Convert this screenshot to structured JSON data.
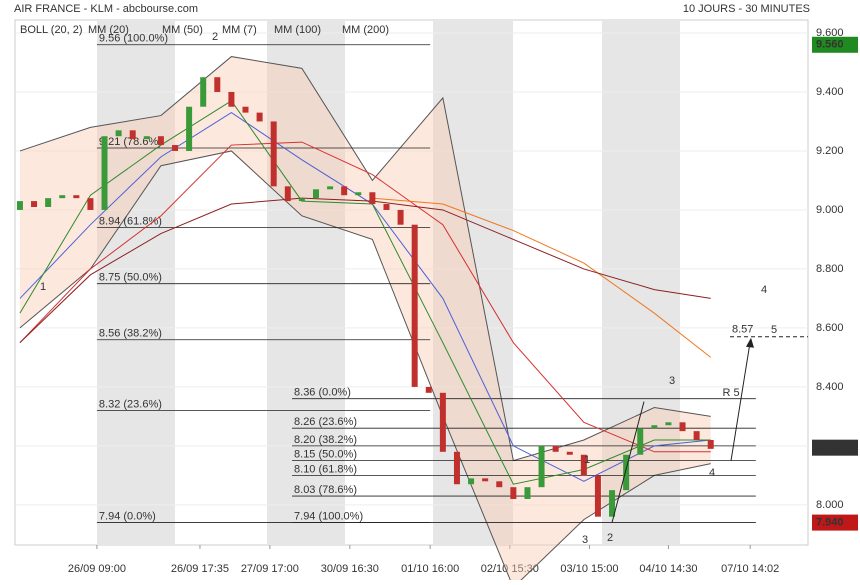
{
  "chart_data": {
    "type": "candlestick",
    "title": "AIR FRANCE - KLM - abcbourse.com",
    "subtitle": "10 JOURS - 30 MINUTES",
    "xlim": [
      -0.35,
      55.9
    ],
    "xticks": [
      {
        "value": 5.46,
        "label": "26/09 09:00"
      },
      {
        "value": 12.77,
        "label": "26/09 17:35"
      },
      {
        "value": 17.73,
        "label": "27/09 17:00"
      },
      {
        "value": 23.4,
        "label": "30/09 16:30"
      },
      {
        "value": 29.1,
        "label": "01/10 16:00"
      },
      {
        "value": 34.75,
        "label": "02/10 15:30"
      },
      {
        "value": 40.4,
        "label": "03/10 15:00"
      },
      {
        "value": 46.0,
        "label": "04/10 14:30"
      },
      {
        "value": 51.8,
        "label": "07/10 14:02"
      }
    ],
    "ylim": [
      7.864,
      9.644
    ],
    "yticks": [
      {
        "value": 9.6,
        "label": "9.600"
      },
      {
        "value": 9.4,
        "label": "9.400"
      },
      {
        "value": 9.2,
        "label": "9.200"
      },
      {
        "value": 9.0,
        "label": "9.000"
      },
      {
        "value": 8.8,
        "label": "8.800"
      },
      {
        "value": 8.6,
        "label": "8.600"
      },
      {
        "value": 8.4,
        "label": "8.400"
      },
      {
        "value": 8.2,
        "label": "8.200"
      },
      {
        "value": 8.0,
        "label": "8.000"
      }
    ],
    "candles": {
      "up_color": "#3a9a3a",
      "down_color": "#c0302c",
      "open": [
        9.0,
        9.03,
        9.01,
        9.04,
        9.05,
        9.04,
        9.0,
        9.25,
        9.27,
        9.24,
        9.25,
        9.22,
        9.2,
        9.35,
        9.45,
        9.4,
        9.35,
        9.33,
        9.3,
        9.08,
        9.03,
        9.04,
        9.07,
        9.08,
        9.05,
        9.06,
        9.02,
        9.0,
        8.95,
        8.4,
        8.38,
        8.18,
        8.07,
        8.09,
        8.08,
        8.06,
        8.02,
        8.06,
        8.2,
        8.18,
        8.17,
        8.1,
        7.96,
        8.05,
        8.17,
        8.26,
        8.27,
        8.28,
        8.25,
        8.22
      ],
      "close": [
        9.03,
        9.01,
        9.04,
        9.05,
        9.04,
        9.0,
        9.25,
        9.27,
        9.24,
        9.25,
        9.22,
        9.2,
        9.35,
        9.45,
        9.4,
        9.35,
        9.33,
        9.3,
        9.08,
        9.03,
        9.04,
        9.07,
        9.08,
        9.05,
        9.06,
        9.02,
        9.0,
        8.95,
        8.4,
        8.38,
        8.18,
        8.07,
        8.09,
        8.08,
        8.06,
        8.02,
        8.06,
        8.2,
        8.18,
        8.17,
        8.1,
        7.96,
        8.05,
        8.17,
        8.26,
        8.27,
        8.28,
        8.25,
        8.22,
        8.19
      ]
    },
    "line_x": [
      0,
      5,
      10,
      15,
      20,
      25,
      30,
      35,
      40,
      45,
      49
    ],
    "series": [
      {
        "name": "BOLL (20, 2)",
        "color": "#555555",
        "upper": [
          9.2,
          9.28,
          9.32,
          9.52,
          9.48,
          9.1,
          9.38,
          8.15,
          8.22,
          8.33,
          8.3
        ],
        "lower": [
          8.6,
          8.8,
          9.15,
          9.2,
          8.98,
          8.9,
          8.3,
          7.72,
          7.95,
          8.1,
          8.14
        ]
      },
      {
        "name": "MM (20)",
        "color": "#4a62d8",
        "values": [
          8.7,
          8.95,
          9.18,
          9.33,
          9.17,
          9.02,
          8.7,
          8.2,
          8.08,
          8.2,
          8.22
        ]
      },
      {
        "name": "MM (50)",
        "color": "#d83030",
        "values": [
          8.55,
          8.8,
          8.98,
          9.22,
          9.23,
          9.12,
          8.95,
          8.55,
          8.28,
          8.18,
          8.18
        ]
      },
      {
        "name": "MM (7)",
        "color": "#2e8b2e",
        "values": [
          8.65,
          9.05,
          9.22,
          9.37,
          9.03,
          9.02,
          8.55,
          8.07,
          8.12,
          8.22,
          8.22
        ]
      },
      {
        "name": "MM (100)",
        "color": "#f07820",
        "values": [
          null,
          null,
          null,
          null,
          null,
          9.04,
          9.02,
          8.93,
          8.82,
          8.65,
          8.5
        ]
      },
      {
        "name": "MM (200)",
        "color": "#8b2020",
        "values": [
          8.55,
          8.78,
          8.92,
          9.02,
          9.04,
          9.03,
          9.0,
          8.9,
          8.8,
          8.73,
          8.7
        ]
      }
    ],
    "fibonacci": [
      {
        "levels": [
          {
            "value": 9.56,
            "label": "9.56  (100.0%)"
          },
          {
            "value": 9.21,
            "label": "9.21  (78.6%)"
          },
          {
            "value": 8.94,
            "label": "8.94  (61.8%)"
          },
          {
            "value": 8.75,
            "label": "8.75  (50.0%)"
          },
          {
            "value": 8.56,
            "label": "8.56  (38.2%)"
          },
          {
            "value": 8.32,
            "label": "8.32  (23.6%)"
          },
          {
            "value": 7.94,
            "label": "7.94  (0.0%)"
          }
        ]
      },
      {
        "levels": [
          {
            "value": 8.36,
            "label": "8.36  (0.0%)"
          },
          {
            "value": 8.26,
            "label": "8.26  (23.6%)"
          },
          {
            "value": 8.2,
            "label": "8.20  (38.2%)"
          },
          {
            "value": 8.15,
            "label": "8.15  (50.0%)"
          },
          {
            "value": 8.1,
            "label": "8.10  (61.8%)"
          },
          {
            "value": 8.03,
            "label": "8.03  (78.6%)"
          },
          {
            "value": 7.94,
            "label": "7.94  (100.0%)"
          }
        ]
      }
    ],
    "target": {
      "value": 8.57,
      "label": "8.57"
    },
    "price_labels": [
      {
        "value": 9.56,
        "label": "9.560",
        "color": "#1f8a1f"
      },
      {
        "value": 8.194,
        "label": "8.194",
        "color": "#333333"
      },
      {
        "value": 7.94,
        "label": "7.940",
        "color": "#c01818"
      }
    ],
    "annotations": [
      {
        "text": "1",
        "color": "#c0302c"
      },
      {
        "text": "2",
        "color": "#c0302c"
      },
      {
        "text": "3",
        "color": "#c0302c"
      },
      {
        "text": "4",
        "color": "#c0302c"
      },
      {
        "text": "1",
        "color": "#22228a"
      },
      {
        "text": "2",
        "color": "#22228a"
      },
      {
        "text": "3",
        "color": "#22228a"
      },
      {
        "text": "4",
        "color": "#22228a"
      },
      {
        "text": "R 5",
        "color": "#22228a"
      },
      {
        "text": "5",
        "color": "#22228a"
      }
    ]
  }
}
